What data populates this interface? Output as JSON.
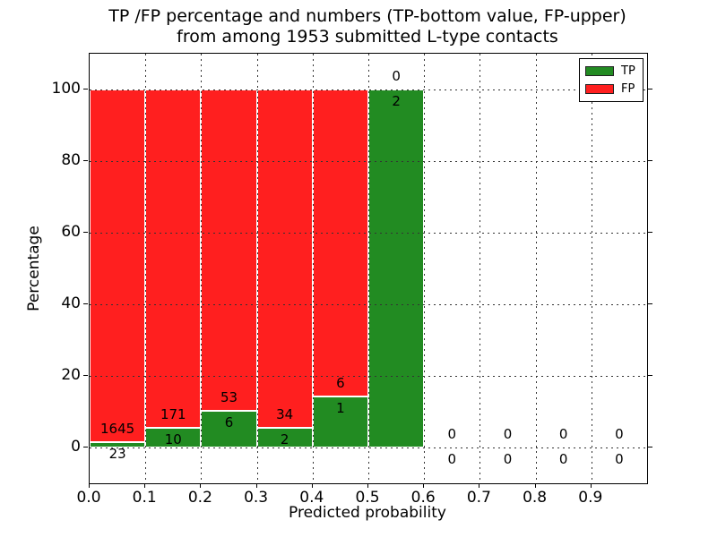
{
  "title": {
    "line1": "TP /FP percentage and numbers (TP-bottom value, FP-upper)",
    "line2": "from among 1953 submitted L-type contacts"
  },
  "axes": {
    "xlabel": "Predicted probability",
    "ylabel": "Percentage"
  },
  "legend": {
    "position": "upper right",
    "entries": [
      {
        "label": "TP",
        "color": "#228b22"
      },
      {
        "label": "FP",
        "color": "#ff1f1f"
      }
    ]
  },
  "colors": {
    "tp_green": "#228b22",
    "fp_red": "#ff1f1f",
    "grid": "#333333",
    "frame": "#000000"
  },
  "chart_data": {
    "type": "bar",
    "stacked": true,
    "normalized": "each non-empty bin stacks to 100%",
    "total_contacts": 1953,
    "bins": [
      {
        "x0": 0.0,
        "x1": 0.1,
        "tp": 23,
        "fp": 1645,
        "tp_pct": 1.38
      },
      {
        "x0": 0.1,
        "x1": 0.2,
        "tp": 10,
        "fp": 171,
        "tp_pct": 5.52
      },
      {
        "x0": 0.2,
        "x1": 0.3,
        "tp": 6,
        "fp": 53,
        "tp_pct": 10.17
      },
      {
        "x0": 0.3,
        "x1": 0.4,
        "tp": 2,
        "fp": 34,
        "tp_pct": 5.56
      },
      {
        "x0": 0.4,
        "x1": 0.5,
        "tp": 1,
        "fp": 6,
        "tp_pct": 14.29
      },
      {
        "x0": 0.5,
        "x1": 0.6,
        "tp": 2,
        "fp": 0,
        "tp_pct": 100
      },
      {
        "x0": 0.6,
        "x1": 0.7,
        "tp": 0,
        "fp": 0,
        "tp_pct": 0
      },
      {
        "x0": 0.7,
        "x1": 0.8,
        "tp": 0,
        "fp": 0,
        "tp_pct": 0
      },
      {
        "x0": 0.8,
        "x1": 0.9,
        "tp": 0,
        "fp": 0,
        "tp_pct": 0
      },
      {
        "x0": 0.9,
        "x1": 1.0,
        "tp": 0,
        "fp": 0,
        "tp_pct": 0
      }
    ],
    "series": [
      {
        "name": "TP",
        "counts": [
          23,
          10,
          6,
          2,
          1,
          2,
          0,
          0,
          0,
          0
        ]
      },
      {
        "name": "FP",
        "counts": [
          1645,
          171,
          53,
          34,
          6,
          0,
          0,
          0,
          0,
          0
        ]
      }
    ],
    "x_tick_labels": [
      "0.0",
      "0.1",
      "0.2",
      "0.3",
      "0.4",
      "0.5",
      "0.6",
      "0.7",
      "0.8",
      "0.9"
    ],
    "y_tick_labels": [
      0,
      20,
      40,
      60,
      80,
      100
    ],
    "xlim": [
      0.0,
      1.0
    ],
    "ylim": [
      -10,
      110
    ],
    "grid": "dotted, both axes",
    "annotation_rule": "FP count above TP bar top, TP count below it"
  }
}
